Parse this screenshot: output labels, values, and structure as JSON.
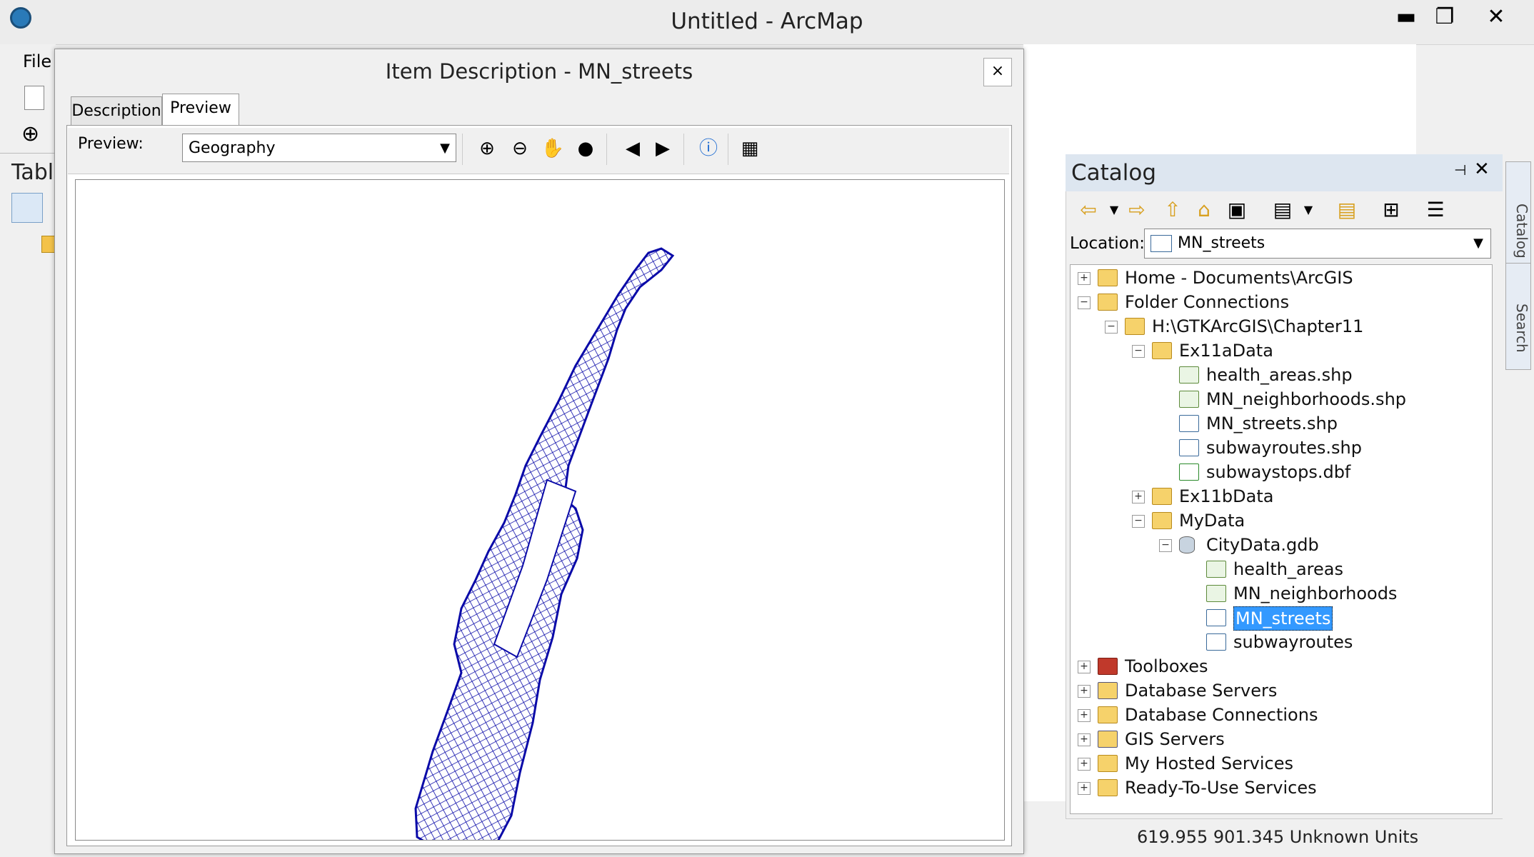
{
  "window": {
    "title": "Untitled - ArcMap",
    "minimize": "▬",
    "maximize": "❐",
    "close": "✕"
  },
  "menu": {
    "file": "File"
  },
  "left_panel": {
    "label": "Tabl"
  },
  "dialog": {
    "title": "Item Description - MN_streets",
    "close": "×",
    "tabs": [
      "Description",
      "Preview"
    ],
    "preview_label": "Preview:",
    "preview_value": "Geography"
  },
  "catalog": {
    "title": "Catalog",
    "location_label": "Location:",
    "location_value": "MN_streets",
    "tree": [
      {
        "label": "Home - Documents\\ArcGIS",
        "expander": "+",
        "icon": "folder"
      },
      {
        "label": "Folder Connections",
        "expander": "−",
        "icon": "folder"
      },
      {
        "label": "H:\\GTKArcGIS\\Chapter11",
        "expander": "−",
        "icon": "folder"
      },
      {
        "label": "Ex11aData",
        "expander": "−",
        "icon": "folder"
      },
      {
        "label": "health_areas.shp",
        "expander": "",
        "icon": "feat"
      },
      {
        "label": "MN_neighborhoods.shp",
        "expander": "",
        "icon": "feat"
      },
      {
        "label": "MN_streets.shp",
        "expander": "",
        "icon": "line"
      },
      {
        "label": "subwayroutes.shp",
        "expander": "",
        "icon": "line"
      },
      {
        "label": "subwaystops.dbf",
        "expander": "",
        "icon": "table"
      },
      {
        "label": "Ex11bData",
        "expander": "+",
        "icon": "folder"
      },
      {
        "label": "MyData",
        "expander": "−",
        "icon": "folder"
      },
      {
        "label": "CityData.gdb",
        "expander": "−",
        "icon": "gdb"
      },
      {
        "label": "health_areas",
        "expander": "",
        "icon": "feat"
      },
      {
        "label": "MN_neighborhoods",
        "expander": "",
        "icon": "feat"
      },
      {
        "label": "MN_streets",
        "expander": "",
        "icon": "line",
        "selected": true
      },
      {
        "label": "subwayroutes",
        "expander": "",
        "icon": "line"
      },
      {
        "label": "Toolboxes",
        "expander": "+",
        "icon": "tool"
      },
      {
        "label": "Database Servers",
        "expander": "+",
        "icon": "serv"
      },
      {
        "label": "Database Connections",
        "expander": "+",
        "icon": "folder"
      },
      {
        "label": "GIS Servers",
        "expander": "+",
        "icon": "serv"
      },
      {
        "label": "My Hosted Services",
        "expander": "+",
        "icon": "folder"
      },
      {
        "label": "Ready-To-Use Services",
        "expander": "+",
        "icon": "folder"
      }
    ]
  },
  "side_tabs": [
    "Catalog",
    "Search"
  ],
  "status": {
    "coords": "619.955  901.345 Unknown Units"
  },
  "map_color": "#0a0aa8"
}
